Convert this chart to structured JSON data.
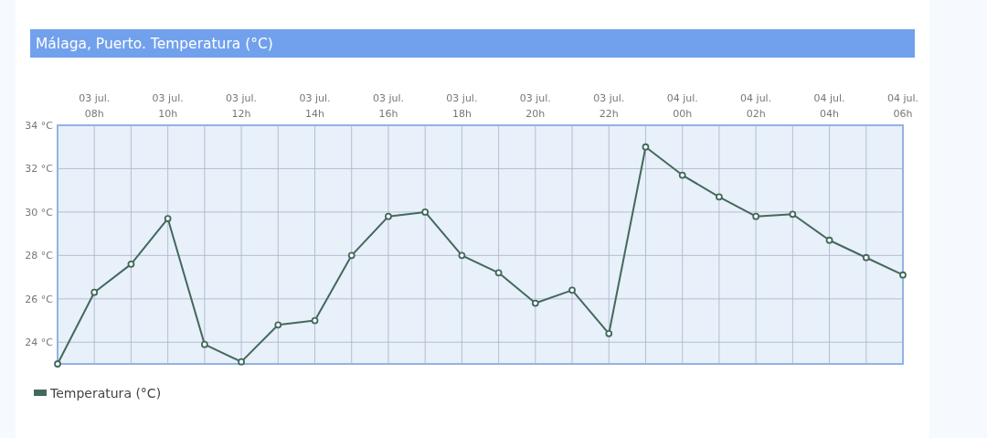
{
  "chart_data": {
    "type": "line",
    "title": "Málaga, Puerto. Temperatura (°C)",
    "categories": [
      null,
      "03 jul. 08h",
      null,
      "03 jul. 10h",
      null,
      "03 jul. 12h",
      null,
      "03 jul. 14h",
      null,
      "03 jul. 16h",
      null,
      "03 jul. 18h",
      null,
      "03 jul. 20h",
      null,
      "03 jul. 22h",
      null,
      "04 jul. 00h",
      null,
      "04 jul. 02h",
      null,
      "04 jul. 04h",
      null,
      "04 jul. 06h"
    ],
    "series": [
      {
        "name": "Temperatura (°C)",
        "color": "#44695c",
        "values": [
          23.0,
          26.3,
          27.6,
          29.7,
          23.9,
          23.1,
          24.8,
          25.0,
          28.0,
          29.8,
          30.0,
          28.0,
          27.2,
          25.8,
          26.4,
          24.4,
          33.0,
          31.7,
          30.7,
          29.8,
          29.9,
          28.7,
          27.9,
          27.1
        ]
      }
    ],
    "ylim": [
      23,
      34
    ],
    "yticks": [
      {
        "value": 24,
        "label": "24 °C"
      },
      {
        "value": 26,
        "label": "26 °C"
      },
      {
        "value": 28,
        "label": "28 °C"
      },
      {
        "value": 30,
        "label": "30 °C"
      },
      {
        "value": 32,
        "label": "32 °C"
      },
      {
        "value": 34,
        "label": "34 °C"
      }
    ],
    "grid": true,
    "legend": "bottom left",
    "marker": "circle",
    "line_style": "solid"
  }
}
